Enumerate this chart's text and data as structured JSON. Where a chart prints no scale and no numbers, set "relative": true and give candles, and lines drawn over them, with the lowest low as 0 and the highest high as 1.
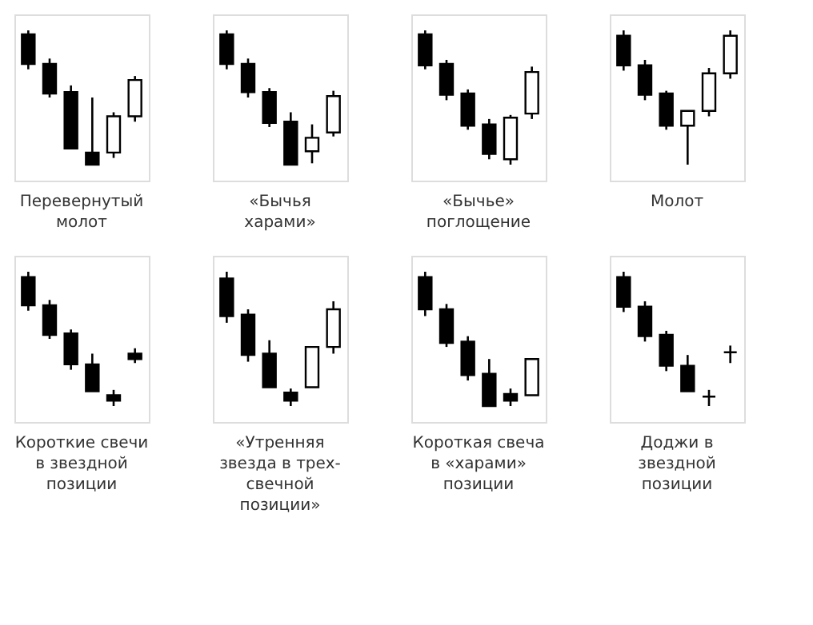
{
  "chart_data": [
    {
      "type": "candlestick",
      "title": "Перевернутый\nмолот",
      "relative": true,
      "categories": [
        null,
        null,
        null,
        null,
        null,
        null
      ],
      "ohlc": [
        [
          0.97,
          1.0,
          0.71,
          0.75
        ],
        [
          0.75,
          0.79,
          0.5,
          0.53
        ],
        [
          0.54,
          0.59,
          0.12,
          0.12
        ],
        [
          0.09,
          0.5,
          0,
          0
        ],
        [
          0.09,
          0.39,
          0.05,
          0.36
        ],
        [
          0.36,
          0.66,
          0.32,
          0.63
        ]
      ]
    },
    {
      "type": "candlestick",
      "title": "«Бычья\nхарами»",
      "relative": true,
      "categories": [
        null,
        null,
        null,
        null,
        null,
        null
      ],
      "ohlc": [
        [
          0.97,
          1.0,
          0.71,
          0.75
        ],
        [
          0.75,
          0.79,
          0.5,
          0.54
        ],
        [
          0.54,
          0.57,
          0.28,
          0.31
        ],
        [
          0.32,
          0.39,
          0,
          0
        ],
        [
          0.1,
          0.3,
          0.01,
          0.2
        ],
        [
          0.24,
          0.55,
          0.21,
          0.51
        ]
      ]
    },
    {
      "type": "candlestick",
      "title": "«Бычье»\nпоглощение",
      "relative": true,
      "categories": [
        null,
        null,
        null,
        null,
        null,
        null
      ],
      "ohlc": [
        [
          0.97,
          1.0,
          0.71,
          0.74
        ],
        [
          0.75,
          0.78,
          0.48,
          0.52
        ],
        [
          0.53,
          0.56,
          0.26,
          0.29
        ],
        [
          0.3,
          0.34,
          0.04,
          0.08
        ],
        [
          0.04,
          0.37,
          0,
          0.35
        ],
        [
          0.38,
          0.73,
          0.34,
          0.69
        ]
      ]
    },
    {
      "type": "candlestick",
      "title": "Молот",
      "relative": true,
      "categories": [
        null,
        null,
        null,
        null,
        null,
        null
      ],
      "ohlc": [
        [
          0.96,
          1.0,
          0.7,
          0.74
        ],
        [
          0.74,
          0.78,
          0.48,
          0.52
        ],
        [
          0.53,
          0.55,
          0.26,
          0.29
        ],
        [
          0.29,
          0.4,
          0,
          0.4
        ],
        [
          0.4,
          0.72,
          0.36,
          0.68
        ],
        [
          0.68,
          1.0,
          0.64,
          0.96
        ]
      ]
    },
    {
      "type": "candlestick",
      "title": "Короткие свечи\nв звездной\nпозиции",
      "relative": true,
      "categories": [
        null,
        null,
        null,
        null,
        null,
        null
      ],
      "ohlc": [
        [
          0.96,
          1.0,
          0.71,
          0.75
        ],
        [
          0.75,
          0.79,
          0.5,
          0.53
        ],
        [
          0.54,
          0.57,
          0.27,
          0.31
        ],
        [
          0.31,
          0.39,
          0.11,
          0.11
        ],
        [
          0.08,
          0.12,
          0,
          0.04
        ],
        [
          0.39,
          0.43,
          0.32,
          0.35
        ]
      ]
    },
    {
      "type": "candlestick",
      "title": "«Утренняя\nзвезда в трех-\nсвечной\nпозиции»",
      "relative": true,
      "categories": [
        null,
        null,
        null,
        null,
        null,
        null
      ],
      "ohlc": [
        [
          0.95,
          1.0,
          0.62,
          0.67
        ],
        [
          0.68,
          0.72,
          0.33,
          0.38
        ],
        [
          0.39,
          0.49,
          0.14,
          0.14
        ],
        [
          0.1,
          0.13,
          0,
          0.04
        ],
        [
          0.14,
          0.44,
          0.14,
          0.44
        ],
        [
          0.44,
          0.78,
          0.39,
          0.72
        ]
      ]
    },
    {
      "type": "candlestick",
      "title": "Короткая свеча\nв «харами»\nпозиции",
      "relative": true,
      "categories": [
        null,
        null,
        null,
        null,
        null,
        null
      ],
      "ohlc": [
        [
          0.96,
          1.0,
          0.67,
          0.72
        ],
        [
          0.72,
          0.76,
          0.44,
          0.47
        ],
        [
          0.48,
          0.52,
          0.19,
          0.23
        ],
        [
          0.24,
          0.35,
          0,
          0
        ],
        [
          0.09,
          0.13,
          0,
          0.04
        ],
        [
          0.08,
          0.35,
          0.08,
          0.35
        ]
      ]
    },
    {
      "type": "candlestick",
      "title": "Доджи в\nзвездной\nпозиции",
      "relative": true,
      "categories": [
        null,
        null,
        null,
        null,
        null,
        null
      ],
      "ohlc": [
        [
          0.96,
          1.0,
          0.7,
          0.74
        ],
        [
          0.74,
          0.78,
          0.48,
          0.52
        ],
        [
          0.53,
          0.56,
          0.26,
          0.3
        ],
        [
          0.3,
          0.38,
          0.11,
          0.11
        ],
        [
          0.07,
          0.12,
          0,
          0.07
        ],
        [
          0.4,
          0.45,
          0.32,
          0.4
        ]
      ]
    }
  ]
}
